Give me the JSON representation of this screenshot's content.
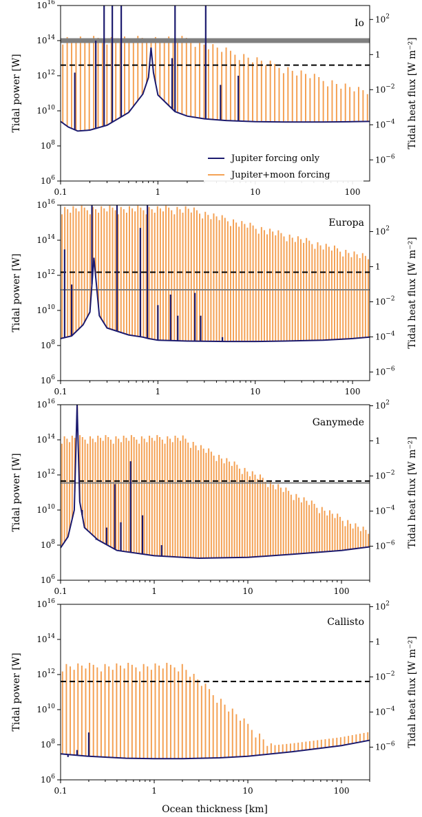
{
  "figure": {
    "xlabel": "Ocean thickness [km]",
    "ylabel_left": "Tidal power [W]",
    "ylabel_right": "Tidal heat flux [W m⁻²]"
  },
  "legend": {
    "jupiter_only": "Jupiter forcing only",
    "jupiter_moon": "Jupiter+moon forcing"
  },
  "colors": {
    "jupiter_only": "#1b1a6e",
    "jupiter_moon": "#f4a154",
    "observed": "#808080",
    "threshold": "#000000"
  },
  "x_ticks": [
    "0.1",
    "1",
    "10",
    "100"
  ],
  "y_ticks_left": [
    "10^6",
    "10^8",
    "10^10",
    "10^12",
    "10^14",
    "10^16"
  ],
  "chart_data": [
    {
      "type": "line",
      "moon": "Io",
      "xscale": "log",
      "yscale": "log",
      "xlim": [
        0.1,
        150
      ],
      "ylim": [
        1000000.0,
        1e+16
      ],
      "right_ticks": [
        "10^2",
        "1",
        "10^-2",
        "10^-4",
        "10^-6"
      ],
      "right_tick_power": [
        1600000000000000.0,
        16000000000000.0,
        160000000000.0,
        1600000000.0,
        16000000.0
      ],
      "observed_power": 100000000000000.0,
      "observed_band": true,
      "threshold_power": 4000000000000.0,
      "legend": true,
      "series": [
        {
          "name": "Jupiter forcing only",
          "baseline": {
            "x": [
              0.1,
              0.12,
              0.15,
              0.2,
              0.3,
              0.5,
              0.7,
              0.8,
              0.85,
              0.9,
              1.0,
              1.5,
              2,
              3,
              5,
              10,
              20,
              50,
              100,
              150
            ],
            "y": [
              2500000000.0,
              1200000000.0,
              700000000.0,
              800000000.0,
              1500000000.0,
              8000000000.0,
              90000000000.0,
              800000000000.0,
              40000000000000.0,
              1500000000000.0,
              80000000000.0,
              9000000000.0,
              5000000000.0,
              3500000000.0,
              2800000000.0,
              2400000000.0,
              2300000000.0,
              2300000000.0,
              2400000000.0,
              2500000000.0
            ]
          },
          "peaks": {
            "x": [
              0.14,
              0.23,
              0.28,
              0.34,
              0.42,
              1.4,
              1.5,
              3.1,
              4.4,
              6.7
            ],
            "y": [
              1500000000000.0,
              100000000000000.0,
              1e+16,
              1e+16,
              1e+16,
              10000000000000.0,
              1e+16,
              1e+16,
              300000000000.0,
              1000000000000.0
            ]
          }
        },
        {
          "name": "Jupiter+moon forcing",
          "peaks_y0": 200000000000000.0,
          "peaks_decay": 0.55,
          "peaks_count": 70
        }
      ]
    },
    {
      "type": "line",
      "moon": "Europa",
      "xscale": "log",
      "yscale": "log",
      "xlim": [
        0.1,
        150
      ],
      "ylim": [
        1000000.0,
        1e+16
      ],
      "right_ticks": [
        "10^2",
        "1",
        "10^-2",
        "10^-4",
        "10^-6"
      ],
      "right_tick_power": [
        310000000000000.0,
        3100000000000.0,
        31000000000.0,
        310000000.0,
        3100000.0
      ],
      "observed_power": 150000000000.0,
      "observed_band": false,
      "threshold_power": 1500000000000.0,
      "legend": false,
      "series": [
        {
          "name": "Jupiter forcing only",
          "baseline": {
            "x": [
              0.1,
              0.13,
              0.17,
              0.2,
              0.22,
              0.25,
              0.3,
              0.5,
              0.7,
              0.8,
              1.0,
              2,
              5,
              10,
              20,
              50,
              100,
              150
            ],
            "y": [
              250000000.0,
              350000000.0,
              1500000000.0,
              8000000000.0,
              10000000000000.0,
              5000000000.0,
              1000000000.0,
              400000000.0,
              300000000.0,
              250000000.0,
              200000000.0,
              180000000.0,
              170000000.0,
              170000000.0,
              180000000.0,
              200000000.0,
              250000000.0,
              300000000.0
            ]
          },
          "peaks": {
            "x": [
              0.11,
              0.13,
              0.21,
              0.38,
              0.66,
              0.78,
              1.0,
              1.35,
              1.6,
              2.4,
              2.75,
              4.6
            ],
            "y": [
              30000000000000.0,
              300000000000.0,
              1e+16,
              1e+16,
              500000000000000.0,
              1e+16,
              20000000000.0,
              80000000000.0,
              5000000000.0,
              100000000000.0,
              5000000000.0,
              300000000.0
            ]
          }
        },
        {
          "name": "Jupiter+moon forcing",
          "peaks_y0": 1e+16,
          "peaks_decay": 0.5,
          "peaks_count": 110
        }
      ]
    },
    {
      "type": "line",
      "moon": "Ganymede",
      "xscale": "log",
      "yscale": "log",
      "xlim": [
        0.1,
        200
      ],
      "ylim": [
        1000000.0,
        1e+16
      ],
      "right_ticks": [
        "10^2",
        "1",
        "10^-2",
        "10^-4",
        "10^-6"
      ],
      "right_tick_power": [
        8700000000000000.0,
        87000000000000.0,
        870000000000.0,
        8700000000.0,
        87000000.0
      ],
      "observed_power": 350000000000.0,
      "observed_band": false,
      "threshold_power": 450000000000.0,
      "legend": false,
      "series": [
        {
          "name": "Jupiter forcing only",
          "baseline": {
            "x": [
              0.1,
              0.12,
              0.14,
              0.15,
              0.16,
              0.18,
              0.25,
              0.4,
              1,
              3,
              10,
              30,
              100,
              200
            ],
            "y": [
              70000000.0,
              300000000.0,
              10000000000.0,
              1e+16,
              30000000000.0,
              1000000000.0,
              200000000.0,
              50000000.0,
              25000000.0,
              18000000.0,
              20000000.0,
              30000000.0,
              50000000.0,
              80000000.0
            ]
          },
          "peaks": {
            "x": [
              0.17,
              0.24,
              0.31,
              0.38,
              0.44,
              0.56,
              0.75,
              1.2
            ],
            "y": [
              10000000000.0,
              200000000.0,
              1000000000.0,
              300000000000.0,
              2000000000.0,
              6000000000000.0,
              5000000000.0,
              100000000.0
            ]
          }
        },
        {
          "name": "Jupiter+moon forcing",
          "peaks_y0": 200000000000000.0,
          "peaks_decay": 0.9,
          "peaks_count": 120
        }
      ]
    },
    {
      "type": "line",
      "moon": "Callisto",
      "xscale": "log",
      "yscale": "log",
      "xlim": [
        0.1,
        200
      ],
      "ylim": [
        1000000.0,
        1e+16
      ],
      "right_ticks": [
        "10^2",
        "1",
        "10^-2",
        "10^-4",
        "10^-6"
      ],
      "right_tick_power": [
        7300000000000000.0,
        73000000000000.0,
        730000000000.0,
        7300000000.0,
        73000000.0
      ],
      "observed_power": null,
      "observed_band": false,
      "threshold_power": 400000000000.0,
      "legend": false,
      "series": [
        {
          "name": "Jupiter forcing only",
          "baseline": {
            "x": [
              0.1,
              0.2,
              0.5,
              1,
              2,
              5,
              10,
              30,
              100,
              200
            ],
            "y": [
              30000000.0,
              22000000.0,
              17000000.0,
              16000000.0,
              16000000.0,
              18000000.0,
              22000000.0,
              40000000.0,
              90000000.0,
              180000000.0
            ]
          },
          "peaks": {
            "x": [
              0.12,
              0.15,
              0.2
            ],
            "y": [
              20000000.0,
              50000000.0,
              500000000.0
            ]
          }
        },
        {
          "name": "Jupiter+moon forcing",
          "peaks_y0": 5000000000000.0,
          "peaks_decay": 1.6,
          "peaks_count": 80
        }
      ]
    }
  ]
}
